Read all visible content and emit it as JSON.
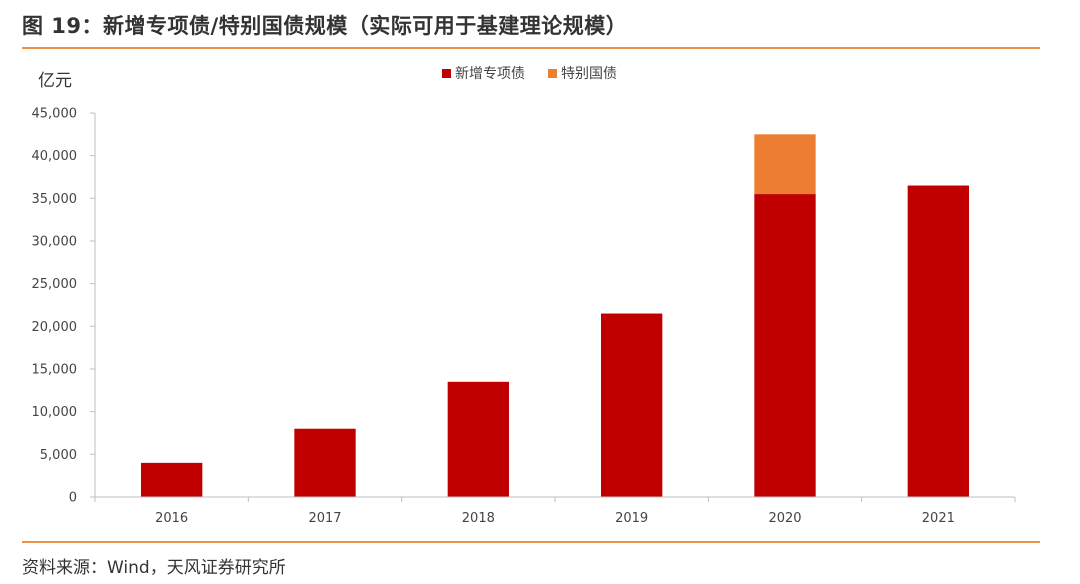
{
  "figure": {
    "title": "图 19：新增专项债/特别国债规模（实际可用于基建理论规模）",
    "source": "资料来源：Wind，天风证券研究所"
  },
  "colors": {
    "series_1": "#C00000",
    "series_2": "#ED7D31",
    "rule": "#E8924A",
    "axis": "#BFBFBF"
  },
  "chart_data": {
    "type": "bar",
    "stacked": true,
    "unit_label": "亿元",
    "categories": [
      "2016",
      "2017",
      "2018",
      "2019",
      "2020",
      "2021"
    ],
    "series": [
      {
        "name": "新增专项债",
        "values": [
          4000,
          8000,
          13500,
          21500,
          35500,
          36500
        ]
      },
      {
        "name": "特别国债",
        "values": [
          0,
          0,
          0,
          0,
          7000,
          0
        ]
      }
    ],
    "ylim": [
      0,
      45000
    ],
    "yticks": [
      "0",
      "5,000",
      "10,000",
      "15,000",
      "20,000",
      "25,000",
      "30,000",
      "35,000",
      "40,000",
      "45,000"
    ],
    "legend_position": "top-center",
    "grid": false
  }
}
